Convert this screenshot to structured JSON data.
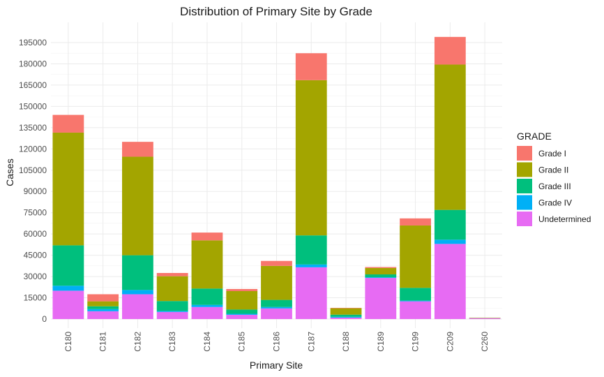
{
  "chart_data": {
    "type": "bar",
    "stacked": true,
    "title": "Distribution of Primary Site by Grade",
    "xlabel": "Primary Site",
    "ylabel": "Cases",
    "ylim": [
      0,
      200000
    ],
    "yticks": [
      0,
      15000,
      30000,
      45000,
      60000,
      75000,
      90000,
      105000,
      120000,
      135000,
      150000,
      165000,
      180000,
      195000
    ],
    "grid": true,
    "legend": {
      "title": "GRADE",
      "position": "right"
    },
    "categories": [
      "C180",
      "C181",
      "C182",
      "C183",
      "C184",
      "C185",
      "C186",
      "C187",
      "C188",
      "C189",
      "C199",
      "C209",
      "C260"
    ],
    "series": [
      {
        "name": "Undetermined",
        "color": "#E76BF3",
        "values": [
          20000,
          5500,
          17500,
          5000,
          8500,
          3000,
          7500,
          36500,
          1000,
          29000,
          12500,
          53000,
          500
        ]
      },
      {
        "name": "Grade IV",
        "color": "#00B0F6",
        "values": [
          3500,
          1500,
          3000,
          700,
          1500,
          700,
          1000,
          2000,
          600,
          500,
          500,
          3000,
          50
        ]
      },
      {
        "name": "Grade III",
        "color": "#00BF7D",
        "values": [
          28500,
          2000,
          24500,
          7000,
          11500,
          3000,
          5000,
          20500,
          1500,
          2000,
          9000,
          21000,
          100
        ]
      },
      {
        "name": "Grade II",
        "color": "#A3A500",
        "values": [
          79500,
          3500,
          69500,
          17500,
          34000,
          13000,
          24000,
          109500,
          4500,
          4500,
          44000,
          102500,
          200
        ]
      },
      {
        "name": "Grade I",
        "color": "#F8766D",
        "values": [
          12500,
          5000,
          10500,
          2300,
          5500,
          1500,
          3500,
          19000,
          300,
          700,
          5000,
          19500,
          150
        ]
      }
    ],
    "legend_order": [
      "Grade I",
      "Grade II",
      "Grade III",
      "Grade IV",
      "Undetermined"
    ]
  }
}
